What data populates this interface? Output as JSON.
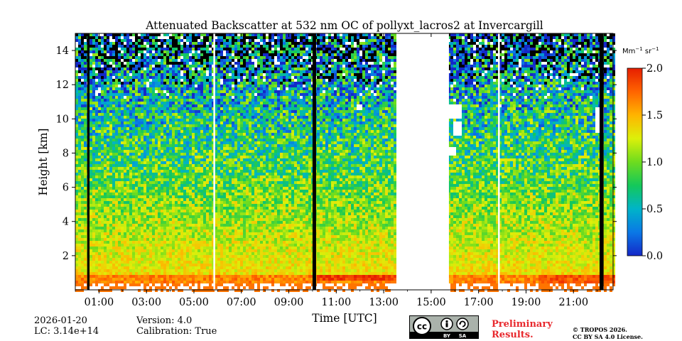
{
  "chart_data": {
    "type": "heatmap",
    "title": "Attenuated Backscatter at 532 nm OC of pollyxt_lacros2 at Invercargill",
    "xlabel": "Time [UTC]",
    "ylabel": "Height [km]",
    "xlim_hours": [
      0,
      22.67
    ],
    "ylim_km": [
      0,
      15
    ],
    "x_ticks": [
      {
        "hour": 1,
        "label": "01:00"
      },
      {
        "hour": 3,
        "label": "03:00"
      },
      {
        "hour": 5,
        "label": "05:00"
      },
      {
        "hour": 7,
        "label": "07:00"
      },
      {
        "hour": 9,
        "label": "09:00"
      },
      {
        "hour": 11,
        "label": "11:00"
      },
      {
        "hour": 13,
        "label": "13:00"
      },
      {
        "hour": 15,
        "label": "15:00"
      },
      {
        "hour": 17,
        "label": "17:00"
      },
      {
        "hour": 19,
        "label": "19:00"
      },
      {
        "hour": 21,
        "label": "21:00"
      }
    ],
    "y_ticks": [
      {
        "km": 2,
        "label": "2"
      },
      {
        "km": 4,
        "label": "4"
      },
      {
        "km": 6,
        "label": "6"
      },
      {
        "km": 8,
        "label": "8"
      },
      {
        "km": 10,
        "label": "10"
      },
      {
        "km": 12,
        "label": "12"
      },
      {
        "km": 14,
        "label": "14"
      }
    ],
    "colorbar": {
      "units_main": "Mm",
      "units_exp1": "−1",
      "units_mid": " sr",
      "units_exp2": "−1",
      "vmin": 0.0,
      "vmax": 2.0,
      "ticks": [
        {
          "value": 0.0,
          "label": "0.0"
        },
        {
          "value": 0.5,
          "label": "0.5"
        },
        {
          "value": 1.0,
          "label": "1.0"
        },
        {
          "value": 1.5,
          "label": "1.5"
        },
        {
          "value": 2.0,
          "label": "2.0"
        }
      ],
      "colormap": [
        "#1428c8",
        "#0a78e6",
        "#00b4c8",
        "#14c85a",
        "#6edc1e",
        "#dcf00a",
        "#ffb400",
        "#ff6400",
        "#e61e00"
      ]
    },
    "no_data_intervals_hours": [
      [
        13.55,
        15.75
      ]
    ],
    "profile_gaps_hours": [
      5.85,
      17.85
    ],
    "blocked_intervals_hours": [
      [
        0.5,
        0.6
      ],
      [
        10.0,
        10.15
      ],
      [
        22.1,
        22.27
      ]
    ],
    "boundary_layer_top_km": 0.9,
    "cloud_patches": [
      {
        "t_start": 11.9,
        "t_end": 12.1,
        "h_low_km": 10.55,
        "h_high_km": 10.9
      },
      {
        "t_start": 15.75,
        "t_end": 16.3,
        "h_low_km": 10.0,
        "h_high_km": 10.9
      },
      {
        "t_start": 15.95,
        "t_end": 16.35,
        "h_low_km": 9.0,
        "h_high_km": 9.9
      },
      {
        "t_start": 15.75,
        "t_end": 16.0,
        "h_low_km": 7.9,
        "h_high_km": 8.4
      },
      {
        "t_start": 17.8,
        "t_end": 18.0,
        "h_low_km": 10.6,
        "h_high_km": 10.9
      },
      {
        "t_start": 21.95,
        "t_end": 22.25,
        "h_low_km": 9.2,
        "h_high_km": 10.6
      }
    ]
  },
  "footer": {
    "date": "2026-01-20",
    "lc": "LC: 3.14e+14",
    "version": "Version: 4.0",
    "calibration": "Calibration: True",
    "preliminary_line1": "Preliminary",
    "preliminary_line2": "Results.",
    "copyright_line1": "© TROPOS 2026.",
    "copyright_line2": "CC BY SA 4.0 License.",
    "cc_label_by": "BY",
    "cc_label_sa": "SA"
  },
  "colors": {
    "preliminary": "#e8282d"
  }
}
